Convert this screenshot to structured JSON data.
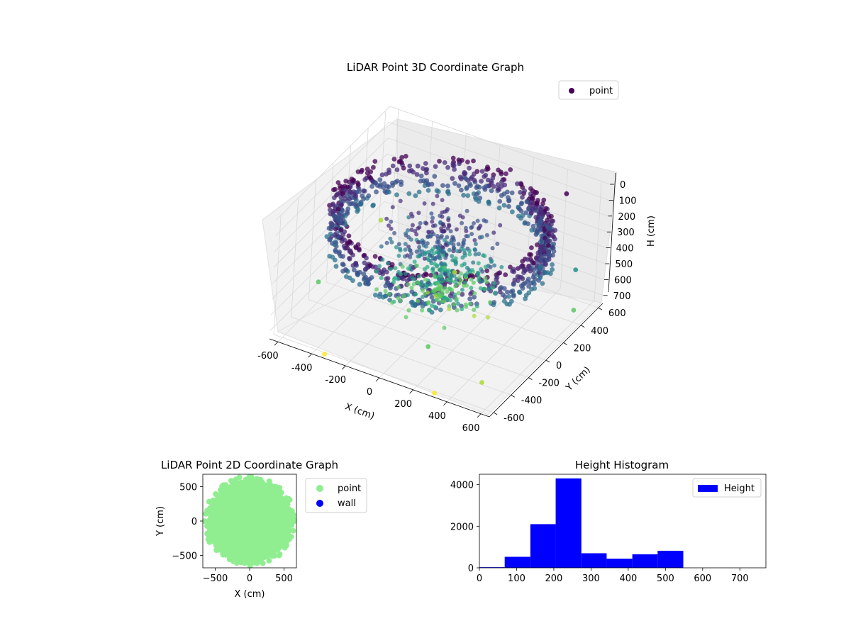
{
  "chart_data": [
    {
      "type": "scatter",
      "title": "LiDAR Point 3D Coordinate Graph",
      "xlabel": "X (cm)",
      "ylabel": "Y (cm)",
      "zlabel": "H (cm)",
      "xlim": [
        -650,
        650
      ],
      "ylim": [
        -650,
        650
      ],
      "zlim": [
        750,
        0
      ],
      "xticks": [
        -600,
        -400,
        -200,
        0,
        200,
        400,
        600
      ],
      "yticks": [
        -600,
        -400,
        -200,
        0,
        200,
        400,
        600
      ],
      "zticks": [
        0,
        100,
        200,
        300,
        400,
        500,
        600,
        700
      ],
      "grid": true,
      "legend": {
        "position": "top-right",
        "entries": [
          "point"
        ]
      },
      "colormap": "viridis",
      "series": [
        {
          "name": "point",
          "description_of_shape": "dense ring (wall) of radius ~600 cm from H 100 to 300, plus fan of points near center",
          "ring_radius": 600,
          "ring_height_range": [
            80,
            320
          ],
          "outliers": [
            {
              "x": -650,
              "y": 620,
              "h": 700
            },
            {
              "x": -600,
              "y": -200,
              "h": 620
            },
            {
              "x": -350,
              "y": -600,
              "h": 760
            },
            {
              "x": 300,
              "y": -600,
              "h": 760
            },
            {
              "x": 500,
              "y": -450,
              "h": 700
            },
            {
              "x": 200,
              "y": -500,
              "h": 560
            },
            {
              "x": -100,
              "y": 400,
              "h": 700
            },
            {
              "x": 600,
              "y": 400,
              "h": 420
            },
            {
              "x": 650,
              "y": 300,
              "h": 600
            },
            {
              "x": 450,
              "y": 550,
              "h": 80
            }
          ]
        }
      ]
    },
    {
      "type": "scatter",
      "title": "LiDAR Point 2D Coordinate Graph",
      "xlabel": "X (cm)",
      "ylabel": "Y (cm)",
      "xlim": [
        -680,
        680
      ],
      "ylim": [
        -680,
        680
      ],
      "xticks": [
        -500,
        0,
        500
      ],
      "yticks": [
        -500,
        0,
        500
      ],
      "legend": {
        "position": "outside-right",
        "entries": [
          "point",
          "wall"
        ]
      },
      "series": [
        {
          "name": "point",
          "color": "#90ee90",
          "shape": "filled disk radius ~600 cm centred near (0,0)"
        },
        {
          "name": "wall",
          "color": "#0000ff",
          "values": []
        }
      ]
    },
    {
      "type": "bar",
      "subtype": "histogram",
      "title": "Height Histogram",
      "xlabel": "",
      "ylabel": "",
      "xlim": [
        0,
        770
      ],
      "ylim": [
        0,
        4500
      ],
      "xticks": [
        0,
        100,
        200,
        300,
        400,
        500,
        600,
        700
      ],
      "yticks": [
        0,
        2000,
        4000
      ],
      "legend": {
        "position": "top-right",
        "entries": [
          "Height"
        ]
      },
      "color": "#0000ff",
      "bin_edges": [
        0,
        68,
        137,
        205,
        274,
        342,
        411,
        479,
        548,
        616,
        685
      ],
      "series": [
        {
          "name": "Height",
          "values": [
            30,
            530,
            2100,
            4300,
            700,
            440,
            650,
            820,
            0,
            0
          ]
        }
      ]
    }
  ]
}
